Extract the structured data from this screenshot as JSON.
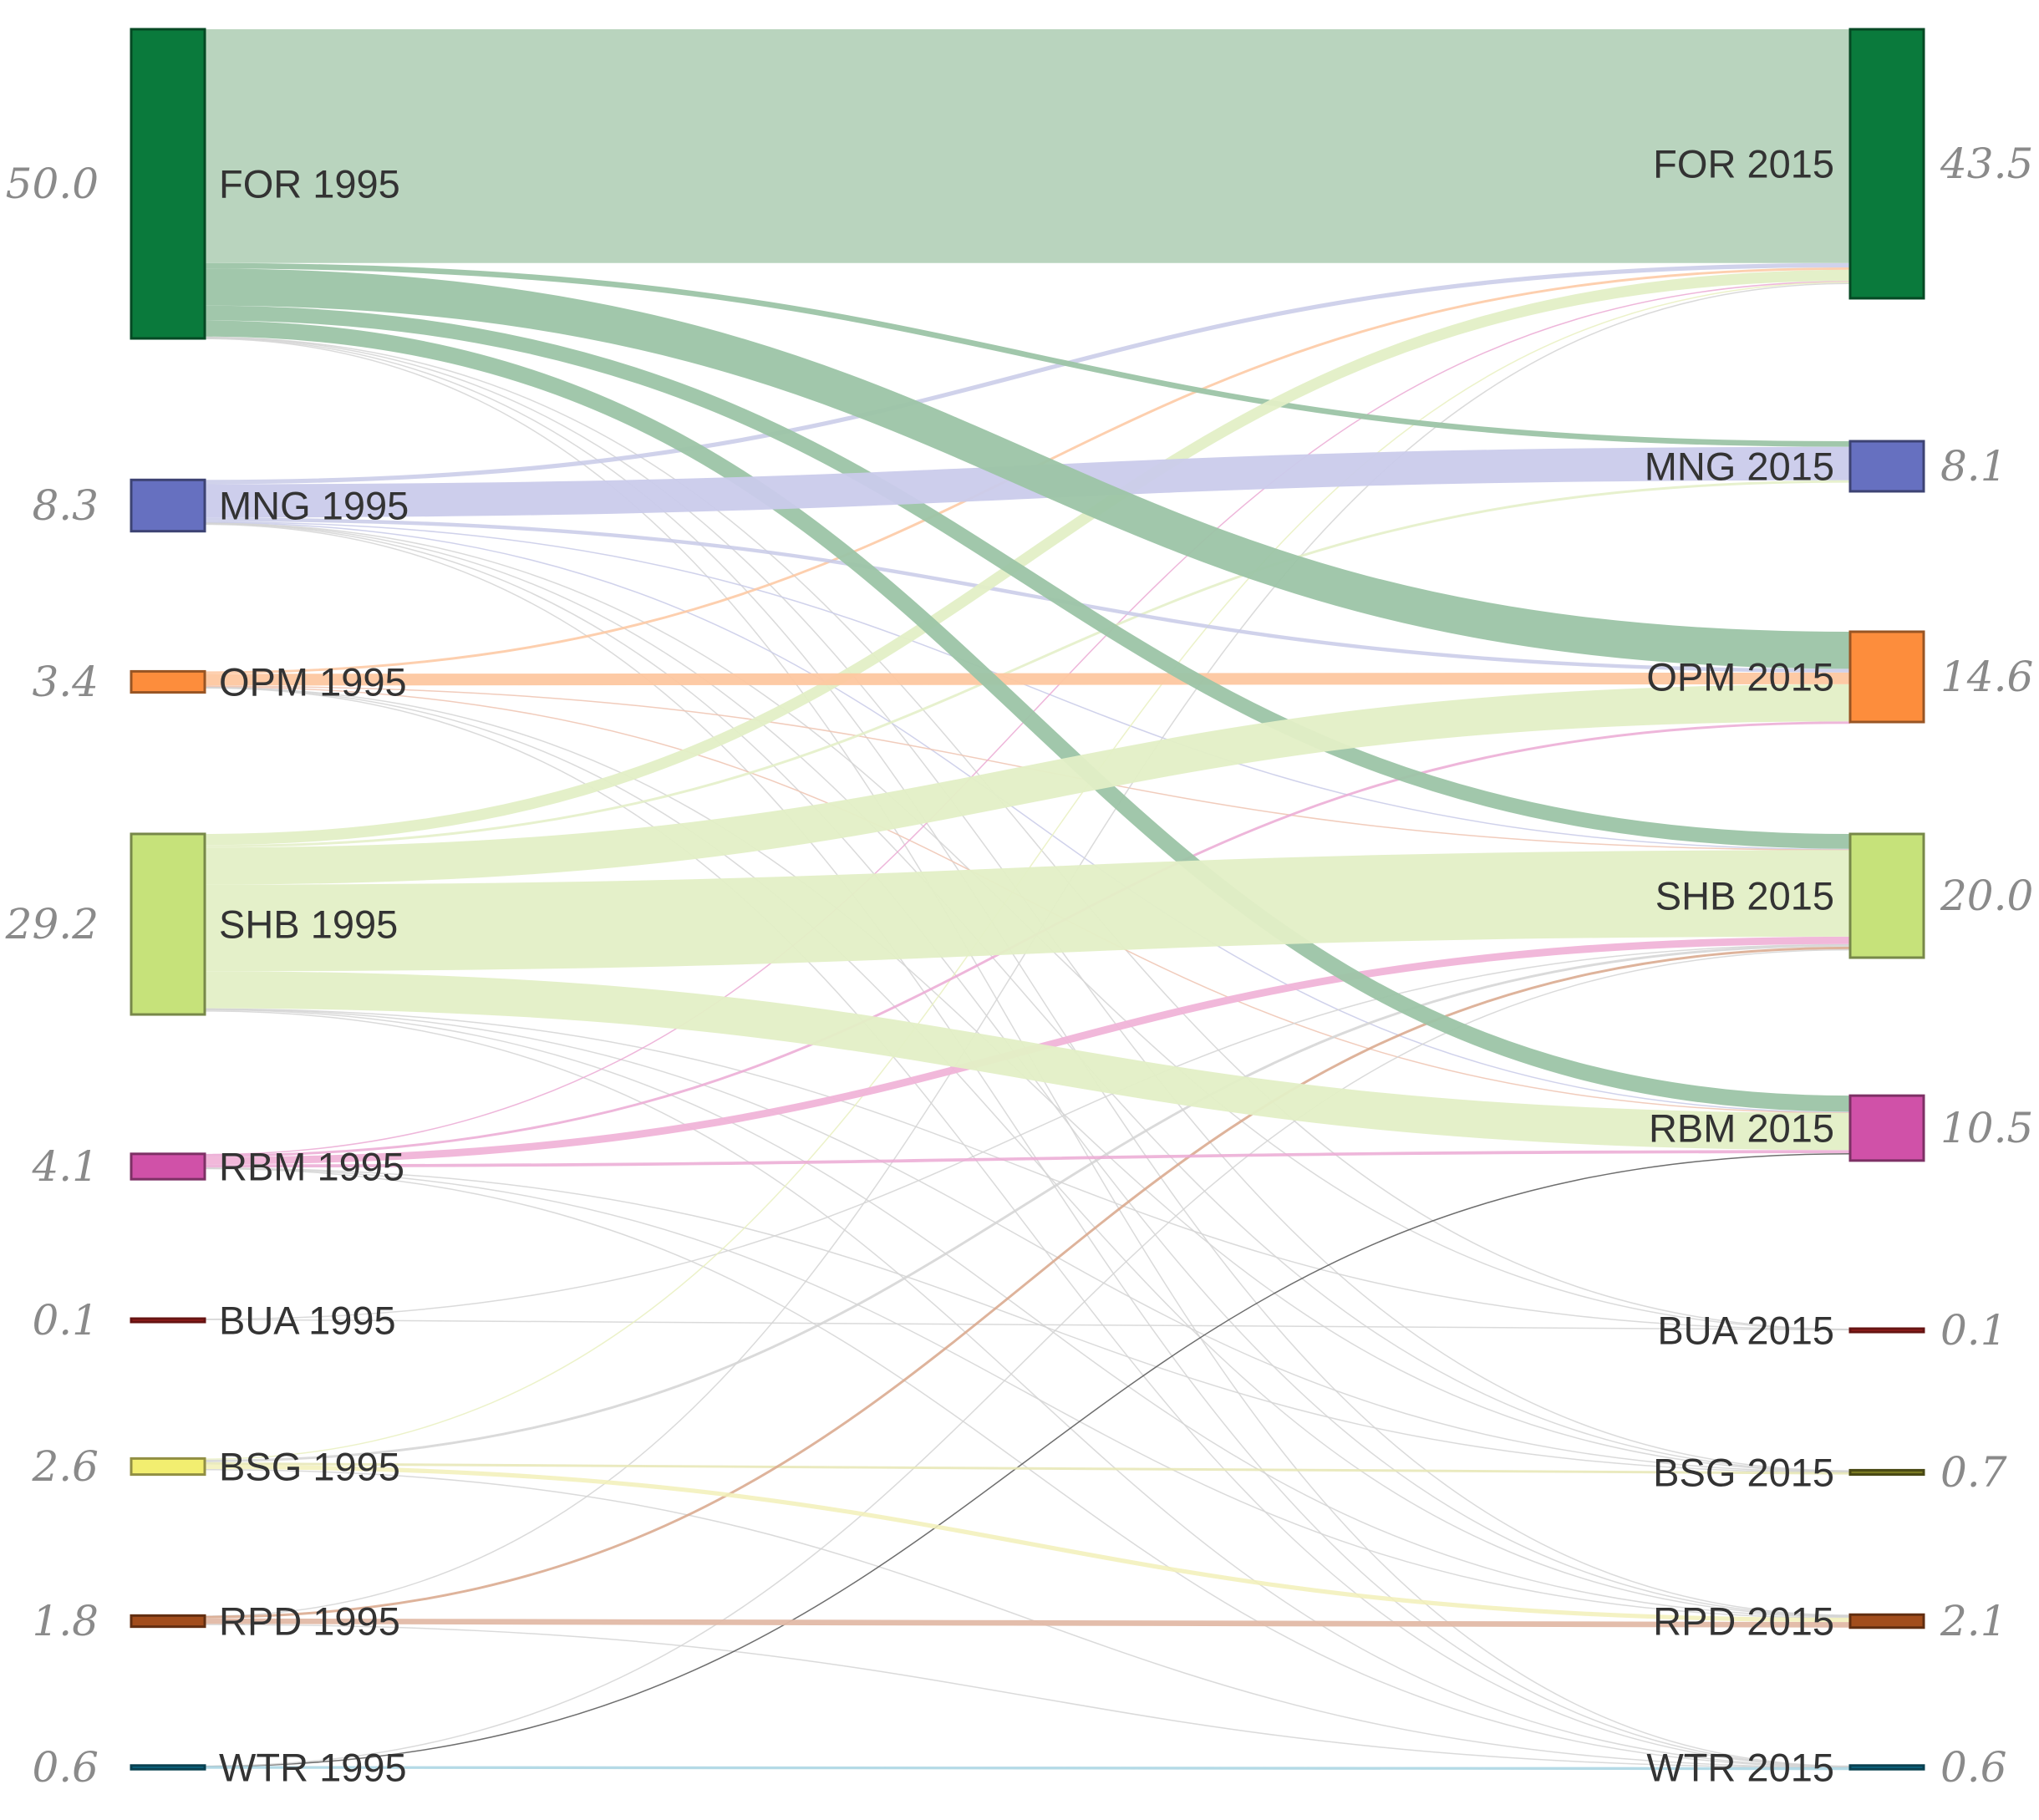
{
  "chart_data": {
    "type": "sankey",
    "title": "",
    "source_year": "1995",
    "target_year": "2015",
    "nodes": [
      {
        "code": "FOR",
        "color": "#0a7a3c",
        "left_label": "FOR 1995",
        "right_label": "FOR 2015",
        "value_1995": 50.0,
        "value_2015": 43.5,
        "left_value_label": "50.0",
        "right_value_label": "43.5"
      },
      {
        "code": "MNG",
        "color": "#6670c0",
        "left_label": "MNG 1995",
        "right_label": "MNG 2015",
        "value_1995": 8.3,
        "value_2015": 8.1,
        "left_value_label": "8.3",
        "right_value_label": "8.1"
      },
      {
        "code": "OPM",
        "color": "#fd8d3c",
        "left_label": "OPM 1995",
        "right_label": "OPM 2015",
        "value_1995": 3.4,
        "value_2015": 14.6,
        "left_value_label": "3.4",
        "right_value_label": "14.6"
      },
      {
        "code": "SHB",
        "color": "#c6e27a",
        "left_label": "SHB 1995",
        "right_label": "SHB 2015",
        "value_1995": 29.2,
        "value_2015": 20.0,
        "left_value_label": "29.2",
        "right_value_label": "20.0"
      },
      {
        "code": "RBM",
        "color": "#d051a8",
        "left_label": "RBM 1995",
        "right_label": "RBM 2015",
        "value_1995": 4.1,
        "value_2015": 10.5,
        "left_value_label": "4.1",
        "right_value_label": "10.5"
      },
      {
        "code": "BUA",
        "color": "#a8201e",
        "left_label": "BUA 1995",
        "right_label": "BUA 2015",
        "value_1995": 0.1,
        "value_2015": 0.1,
        "left_value_label": "0.1",
        "right_value_label": "0.1"
      },
      {
        "code": "BSG",
        "color": "#f2ee70",
        "right_color": "#7a7a22",
        "left_label": "BSG 1995",
        "right_label": "BSG 2015",
        "value_1995": 2.6,
        "value_2015": 0.7,
        "left_value_label": "2.6",
        "right_value_label": "0.7"
      },
      {
        "code": "RPD",
        "color": "#a24d1c",
        "left_label": "RPD 1995",
        "right_label": "RPD 2015",
        "value_1995": 1.8,
        "value_2015": 2.1,
        "left_value_label": "1.8",
        "right_value_label": "2.1"
      },
      {
        "code": "WTR",
        "color": "#0e6a86",
        "left_label": "WTR 1995",
        "right_label": "WTR 2015",
        "value_1995": 0.6,
        "value_2015": 0.6,
        "left_value_label": "0.6",
        "right_value_label": "0.6"
      }
    ],
    "flows": [
      {
        "source": "FOR",
        "target": "FOR",
        "value": 37.8,
        "color": "#b5d2bb"
      },
      {
        "source": "FOR",
        "target": "MNG",
        "value": 0.9,
        "color": "#9cc4a6"
      },
      {
        "source": "FOR",
        "target": "OPM",
        "value": 6.0,
        "color": "#9cc4a6"
      },
      {
        "source": "FOR",
        "target": "RBM",
        "value": 2.6,
        "color": "#9cc4a6"
      },
      {
        "source": "FOR",
        "target": "SHB",
        "value": 2.4,
        "color": "#9cc4a6"
      },
      {
        "source": "FOR",
        "target": "BUA",
        "value": 0.03,
        "color": "#d4d4d4"
      },
      {
        "source": "FOR",
        "target": "BSG",
        "value": 0.1,
        "color": "#d4d4d4"
      },
      {
        "source": "FOR",
        "target": "RPD",
        "value": 0.1,
        "color": "#d4d4d4"
      },
      {
        "source": "FOR",
        "target": "WTR",
        "value": 0.05,
        "color": "#d4d4d4"
      },
      {
        "source": "MNG",
        "target": "FOR",
        "value": 0.7,
        "color": "#c8cae8"
      },
      {
        "source": "MNG",
        "target": "MNG",
        "value": 5.4,
        "color": "#cacbeb"
      },
      {
        "source": "MNG",
        "target": "OPM",
        "value": 0.6,
        "color": "#c8cae8"
      },
      {
        "source": "MNG",
        "target": "RBM",
        "value": 0.1,
        "color": "#c8cae8"
      },
      {
        "source": "MNG",
        "target": "SHB",
        "value": 0.1,
        "color": "#c8cae8"
      },
      {
        "source": "MNG",
        "target": "BUA",
        "value": 0.03,
        "color": "#d4d4d4"
      },
      {
        "source": "MNG",
        "target": "BSG",
        "value": 0.05,
        "color": "#d4d4d4"
      },
      {
        "source": "MNG",
        "target": "RPD",
        "value": 0.1,
        "color": "#d4d4d4"
      },
      {
        "source": "MNG",
        "target": "WTR",
        "value": 0.03,
        "color": "#d4d4d4"
      },
      {
        "source": "OPM",
        "target": "FOR",
        "value": 0.4,
        "color": "#fdc7a0"
      },
      {
        "source": "OPM",
        "target": "OPM",
        "value": 1.9,
        "color": "#fdc7a0"
      },
      {
        "source": "OPM",
        "target": "RBM",
        "value": 0.1,
        "color": "#eec3b0"
      },
      {
        "source": "OPM",
        "target": "SHB",
        "value": 0.1,
        "color": "#eec3b0"
      },
      {
        "source": "OPM",
        "target": "BSG",
        "value": 0.03,
        "color": "#d4d4d4"
      },
      {
        "source": "OPM",
        "target": "RPD",
        "value": 0.05,
        "color": "#d4d4d4"
      },
      {
        "source": "OPM",
        "target": "WTR",
        "value": 0.03,
        "color": "#d4d4d4"
      },
      {
        "source": "SHB",
        "target": "FOR",
        "value": 1.8,
        "color": "#e3efc6"
      },
      {
        "source": "SHB",
        "target": "MNG",
        "value": 0.4,
        "color": "#e3efc6"
      },
      {
        "source": "SHB",
        "target": "OPM",
        "value": 6.0,
        "color": "#e3efc6"
      },
      {
        "source": "SHB",
        "target": "RBM",
        "value": 6.0,
        "color": "#e3efc6"
      },
      {
        "source": "SHB",
        "target": "SHB",
        "value": 14.0,
        "color": "#e3efc6"
      },
      {
        "source": "SHB",
        "target": "BUA",
        "value": 0.03,
        "color": "#d4d4d4"
      },
      {
        "source": "SHB",
        "target": "BSG",
        "value": 0.1,
        "color": "#d4d4d4"
      },
      {
        "source": "SHB",
        "target": "RPD",
        "value": 0.2,
        "color": "#d4d4d4"
      },
      {
        "source": "SHB",
        "target": "WTR",
        "value": 0.05,
        "color": "#d4d4d4"
      },
      {
        "source": "RBM",
        "target": "FOR",
        "value": 0.1,
        "color": "#eba9d4"
      },
      {
        "source": "RBM",
        "target": "OPM",
        "value": 0.4,
        "color": "#eba9d4"
      },
      {
        "source": "RBM",
        "target": "RBM",
        "value": 0.5,
        "color": "#eba9d4"
      },
      {
        "source": "RBM",
        "target": "SHB",
        "value": 1.2,
        "color": "#f0b4d8"
      },
      {
        "source": "RBM",
        "target": "BSG",
        "value": 0.03,
        "color": "#d4d4d4"
      },
      {
        "source": "RBM",
        "target": "RPD",
        "value": 0.05,
        "color": "#d4d4d4"
      },
      {
        "source": "RBM",
        "target": "WTR",
        "value": 0.03,
        "color": "#d4d4d4"
      },
      {
        "source": "BUA",
        "target": "BUA",
        "value": 0.05,
        "color": "#d4d4d4"
      },
      {
        "source": "BUA",
        "target": "SHB",
        "value": 0.03,
        "color": "#d4d4d4"
      },
      {
        "source": "BSG",
        "target": "FOR",
        "value": 0.2,
        "color": "#e9f0c0"
      },
      {
        "source": "BSG",
        "target": "SHB",
        "value": 0.4,
        "color": "#d4d4d4"
      },
      {
        "source": "BSG",
        "target": "BSG",
        "value": 0.4,
        "color": "#e6e6b4"
      },
      {
        "source": "BSG",
        "target": "RPD",
        "value": 0.7,
        "color": "#f2f0b8"
      },
      {
        "source": "BSG",
        "target": "WTR",
        "value": 0.05,
        "color": "#d4d4d4"
      },
      {
        "source": "RPD",
        "target": "SHB",
        "value": 0.4,
        "color": "#d8a68a"
      },
      {
        "source": "RPD",
        "target": "RPD",
        "value": 0.9,
        "color": "#e2b9a6"
      },
      {
        "source": "RPD",
        "target": "FOR",
        "value": 0.05,
        "color": "#d4d4d4"
      },
      {
        "source": "RPD",
        "target": "WTR",
        "value": 0.05,
        "color": "#d4d4d4"
      },
      {
        "source": "WTR",
        "target": "RBM",
        "value": 0.05,
        "color": "#555555"
      },
      {
        "source": "WTR",
        "target": "WTR",
        "value": 0.45,
        "color": "#a7d4e2"
      },
      {
        "source": "WTR",
        "target": "SHB",
        "value": 0.03,
        "color": "#d4d4d4"
      }
    ]
  }
}
